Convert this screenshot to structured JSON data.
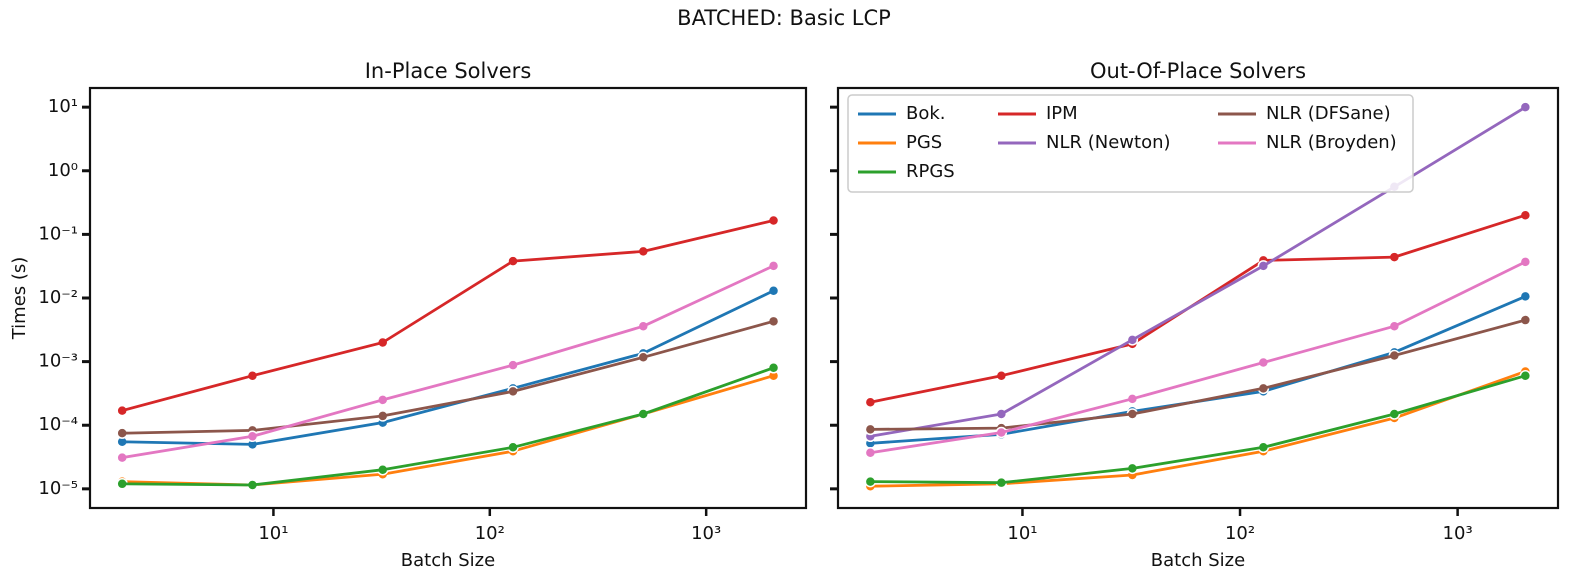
{
  "title": "BATCHED: Basic LCP",
  "chart_data": [
    {
      "type": "line",
      "title": "In-Place Solvers",
      "xlabel": "Batch Size",
      "ylabel": "Times (s)",
      "log_x": true,
      "log_y": true,
      "x": [
        2,
        8,
        32,
        128,
        512,
        2048
      ],
      "xlim": [
        1.42,
        2893
      ],
      "ylim": [
        5e-06,
        20
      ],
      "xticks": [
        {
          "value": 10,
          "label": "10¹"
        },
        {
          "value": 100,
          "label": "10²"
        },
        {
          "value": 1000,
          "label": "10³"
        }
      ],
      "yticks": [
        {
          "value": 1e-05,
          "label": "10⁻⁵"
        },
        {
          "value": 0.0001,
          "label": "10⁻⁴"
        },
        {
          "value": 0.001,
          "label": "10⁻³"
        },
        {
          "value": 0.01,
          "label": "10⁻²"
        },
        {
          "value": 0.1,
          "label": "10⁻¹"
        },
        {
          "value": 1,
          "label": "10⁰"
        },
        {
          "value": 10,
          "label": "10¹"
        }
      ],
      "series": [
        {
          "name": "Bok.",
          "color": "#1f77b4",
          "values": [
            5.5e-05,
            5e-05,
            0.00011,
            0.00038,
            0.00135,
            0.013
          ]
        },
        {
          "name": "PGS",
          "color": "#ff7f0e",
          "values": [
            1.3e-05,
            1.15e-05,
            1.7e-05,
            3.9e-05,
            0.00015,
            0.0006
          ]
        },
        {
          "name": "RPGS",
          "color": "#2ca02c",
          "values": [
            1.2e-05,
            1.15e-05,
            2e-05,
            4.5e-05,
            0.00015,
            0.0008
          ]
        },
        {
          "name": "IPM",
          "color": "#d62728",
          "values": [
            0.00017,
            0.0006,
            0.002,
            0.038,
            0.054,
            0.165
          ]
        },
        {
          "name": "NLR (DFSane)",
          "color": "#8c564b",
          "values": [
            7.5e-05,
            8.3e-05,
            0.00014,
            0.00034,
            0.00117,
            0.0043
          ]
        },
        {
          "name": "NLR (Broyden)",
          "color": "#e377c2",
          "values": [
            3.1e-05,
            6.7e-05,
            0.00025,
            0.00088,
            0.0036,
            0.032
          ]
        }
      ]
    },
    {
      "type": "line",
      "title": "Out-Of-Place Solvers",
      "xlabel": "Batch Size",
      "log_x": true,
      "log_y": true,
      "legend": "upper left",
      "x": [
        2,
        8,
        32,
        128,
        512,
        2048
      ],
      "xlim": [
        1.42,
        2893
      ],
      "ylim": [
        5e-06,
        20
      ],
      "xticks": [
        {
          "value": 10,
          "label": "10¹"
        },
        {
          "value": 100,
          "label": "10²"
        },
        {
          "value": 1000,
          "label": "10³"
        }
      ],
      "yticks": [
        1e-05,
        0.0001,
        0.001,
        0.01,
        0.1,
        1,
        10
      ],
      "series": [
        {
          "name": "Bok.",
          "color": "#1f77b4",
          "values": [
            5.2e-05,
            7.2e-05,
            0.000165,
            0.00034,
            0.0014,
            0.0106
          ]
        },
        {
          "name": "PGS",
          "color": "#ff7f0e",
          "values": [
            1.1e-05,
            1.2e-05,
            1.65e-05,
            3.9e-05,
            0.00013,
            0.0007
          ]
        },
        {
          "name": "RPGS",
          "color": "#2ca02c",
          "values": [
            1.3e-05,
            1.25e-05,
            2.1e-05,
            4.5e-05,
            0.00015,
            0.0006
          ]
        },
        {
          "name": "IPM",
          "color": "#d62728",
          "values": [
            0.00023,
            0.0006,
            0.0019,
            0.039,
            0.044,
            0.2
          ]
        },
        {
          "name": "NLR (Newton)",
          "color": "#9467bd",
          "values": [
            6.7e-05,
            0.00015,
            0.0022,
            0.032,
            0.56,
            10
          ]
        },
        {
          "name": "NLR (DFSane)",
          "color": "#8c564b",
          "values": [
            8.6e-05,
            9e-05,
            0.00015,
            0.00038,
            0.00125,
            0.0045
          ]
        },
        {
          "name": "NLR (Broyden)",
          "color": "#e377c2",
          "values": [
            3.7e-05,
            7.7e-05,
            0.00026,
            0.00097,
            0.0036,
            0.037
          ]
        }
      ]
    }
  ]
}
